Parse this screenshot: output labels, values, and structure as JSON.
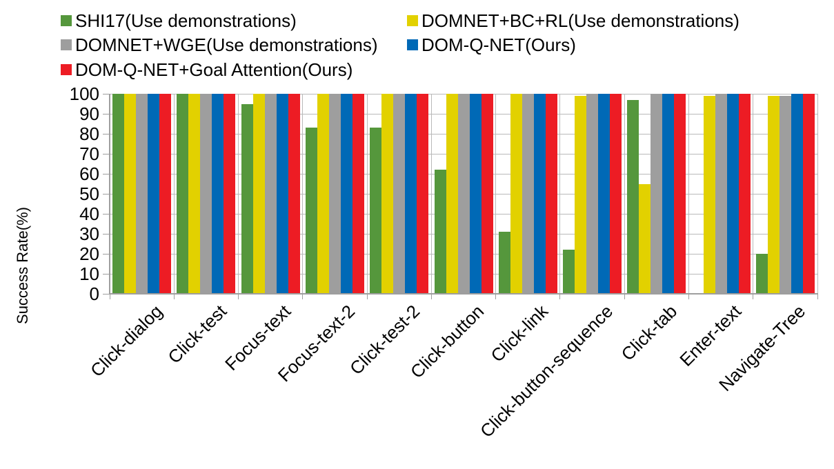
{
  "chart_data": {
    "type": "bar",
    "title": "",
    "xlabel": "",
    "ylabel": "Success Rate(%)",
    "ylim": [
      0,
      100
    ],
    "yticks": [
      0,
      10,
      20,
      30,
      40,
      50,
      60,
      70,
      80,
      90,
      100
    ],
    "grid": true,
    "legend_position": "top",
    "categories": [
      "Click-dialog",
      "Click-test",
      "Focus-text",
      "Focus-text-2",
      "Click-test-2",
      "Click-button",
      "Click-link",
      "Click-button-sequence",
      "Click-tab",
      "Enter-text",
      "Navigate-Tree"
    ],
    "series": [
      {
        "name": "SHI17(Use demonstrations)",
        "color": "#55973C",
        "values": [
          100,
          100,
          95,
          83,
          83,
          62,
          31,
          22,
          97,
          0,
          20
        ]
      },
      {
        "name": "DOMNET+BC+RL(Use demonstrations)",
        "color": "#E2D100",
        "values": [
          100,
          100,
          100,
          100,
          100,
          100,
          100,
          99,
          55,
          99,
          99
        ]
      },
      {
        "name": "DOMNET+WGE(Use demonstrations)",
        "color": "#9E9E9E",
        "values": [
          100,
          100,
          100,
          100,
          100,
          100,
          100,
          100,
          100,
          100,
          99
        ]
      },
      {
        "name": "DOM-Q-NET(Ours)",
        "color": "#0069B6",
        "values": [
          100,
          100,
          100,
          100,
          100,
          100,
          100,
          100,
          100,
          100,
          100
        ]
      },
      {
        "name": "DOM-Q-NET+Goal Attention(Ours)",
        "color": "#ED1C24",
        "values": [
          100,
          100,
          100,
          100,
          100,
          100,
          100,
          100,
          100,
          100,
          100
        ]
      }
    ]
  }
}
